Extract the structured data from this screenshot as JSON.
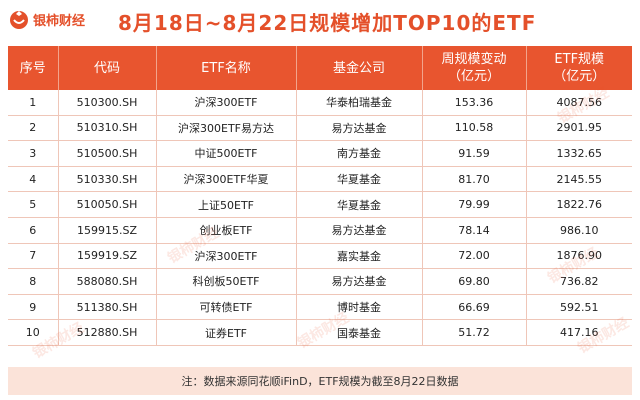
{
  "brand": {
    "name": "银柿财经"
  },
  "title": "8月18日~8月22日规模增加TOP10的ETF",
  "table": {
    "headers": [
      "序号",
      "代码",
      "ETF名称",
      "基金公司",
      "周规模变动\n（亿元）",
      "ETF规模\n（亿元）"
    ],
    "rows": [
      [
        "1",
        "510300.SH",
        "沪深300ETF",
        "华泰柏瑞基金",
        "153.36",
        "4087.56"
      ],
      [
        "2",
        "510310.SH",
        "沪深300ETF易方达",
        "易方达基金",
        "110.58",
        "2901.95"
      ],
      [
        "3",
        "510500.SH",
        "中证500ETF",
        "南方基金",
        "91.59",
        "1332.65"
      ],
      [
        "4",
        "510330.SH",
        "沪深300ETF华夏",
        "华夏基金",
        "81.70",
        "2145.55"
      ],
      [
        "5",
        "510050.SH",
        "上证50ETF",
        "华夏基金",
        "79.99",
        "1822.76"
      ],
      [
        "6",
        "159915.SZ",
        "创业板ETF",
        "易方达基金",
        "78.14",
        "986.10"
      ],
      [
        "7",
        "159919.SZ",
        "沪深300ETF",
        "嘉实基金",
        "72.00",
        "1876.90"
      ],
      [
        "8",
        "588080.SH",
        "科创板50ETF",
        "易方达基金",
        "69.80",
        "736.82"
      ],
      [
        "9",
        "511380.SH",
        "可转债ETF",
        "博时基金",
        "66.69",
        "592.51"
      ],
      [
        "10",
        "512880.SH",
        "证券ETF",
        "国泰基金",
        "51.72",
        "417.16"
      ]
    ]
  },
  "footer": "注：数据来源同花顺iFinD，ETF规模为截至8月22日数据",
  "colors": {
    "accent": "#e4502a",
    "header_bg": "#e8552f",
    "footer_bg": "#fbe3d9"
  },
  "icons": {
    "logo": "persimmon-logo-icon"
  }
}
